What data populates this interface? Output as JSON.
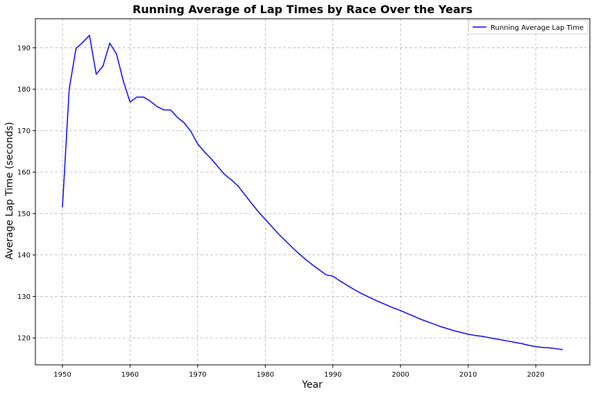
{
  "chart_data": {
    "type": "line",
    "title": "Running Average of Lap Times by Race Over the Years",
    "xlabel": "Year",
    "ylabel": "Average Lap Time (seconds)",
    "xlim": [
      1946,
      2028
    ],
    "ylim": [
      113.5,
      197
    ],
    "xticks": [
      1950,
      1960,
      1970,
      1980,
      1990,
      2000,
      2010,
      2020
    ],
    "yticks": [
      120,
      130,
      140,
      150,
      160,
      170,
      180,
      190
    ],
    "grid": true,
    "legend": {
      "position": "top-right",
      "entries": [
        "Running Average Lap Time"
      ]
    },
    "series": [
      {
        "name": "Running Average Lap Time",
        "color": "#0000ff",
        "x": [
          1950,
          1951,
          1952,
          1953,
          1954,
          1955,
          1956,
          1957,
          1958,
          1959,
          1960,
          1961,
          1962,
          1963,
          1964,
          1965,
          1966,
          1967,
          1968,
          1969,
          1970,
          1971,
          1972,
          1973,
          1974,
          1975,
          1976,
          1977,
          1978,
          1979,
          1980,
          1981,
          1982,
          1983,
          1984,
          1985,
          1986,
          1987,
          1988,
          1989,
          1990,
          1991,
          1992,
          1993,
          1994,
          1995,
          1996,
          1997,
          1998,
          1999,
          2000,
          2001,
          2002,
          2003,
          2004,
          2005,
          2006,
          2007,
          2008,
          2009,
          2010,
          2011,
          2012,
          2013,
          2014,
          2015,
          2016,
          2017,
          2018,
          2019,
          2020,
          2021,
          2022,
          2023,
          2024
        ],
        "y": [
          151.5,
          180.0,
          189.8,
          191.3,
          193.0,
          183.6,
          185.6,
          191.1,
          188.5,
          182.0,
          176.9,
          178.1,
          178.1,
          177.1,
          175.8,
          175.0,
          175.0,
          173.2,
          171.9,
          169.8,
          166.8,
          164.9,
          163.2,
          161.3,
          159.4,
          158.1,
          156.6,
          154.5,
          152.4,
          150.4,
          148.6,
          146.8,
          145.0,
          143.4,
          141.8,
          140.3,
          138.9,
          137.6,
          136.4,
          135.2,
          134.9,
          133.8,
          132.8,
          131.8,
          130.9,
          130.1,
          129.3,
          128.6,
          127.9,
          127.2,
          126.6,
          125.9,
          125.2,
          124.5,
          123.9,
          123.3,
          122.7,
          122.2,
          121.7,
          121.3,
          120.9,
          120.6,
          120.4,
          120.1,
          119.8,
          119.5,
          119.2,
          118.9,
          118.6,
          118.2,
          117.9,
          117.7,
          117.6,
          117.4,
          117.2
        ]
      }
    ]
  }
}
